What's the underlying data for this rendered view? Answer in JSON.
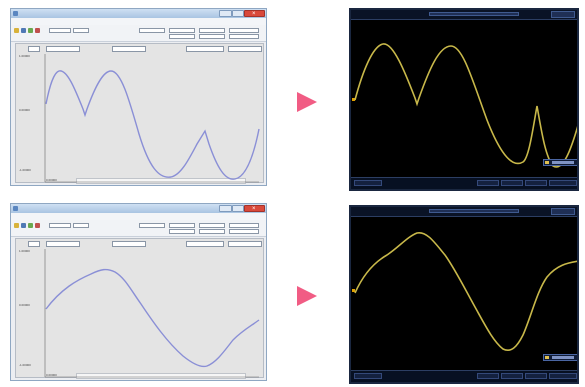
{
  "software_windows": [
    {
      "id": "top",
      "y_min_label": "-1.00000",
      "y_mid_label": "0.00000",
      "y_max_label": "1.00000",
      "x_start_label": "0.00000",
      "waveform_color": "#8a8fd6"
    },
    {
      "id": "bottom",
      "y_min_label": "-1.00000",
      "y_mid_label": "0.00000",
      "y_max_label": "1.00000",
      "x_start_label": "0.00000",
      "waveform_color": "#8a8fd6"
    }
  ],
  "oscilloscopes": [
    {
      "id": "top",
      "waveform_color": "#c8b84a"
    },
    {
      "id": "bottom",
      "waveform_color": "#c8b84a"
    }
  ],
  "arrow_color": "#f15c84"
}
